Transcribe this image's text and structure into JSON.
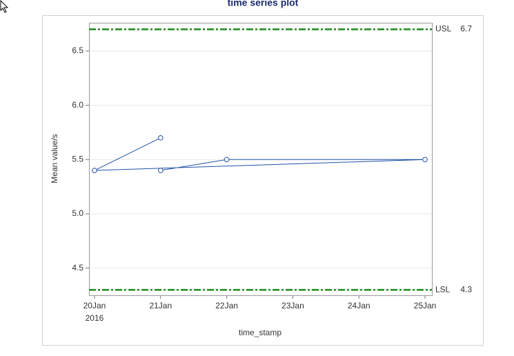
{
  "chart_data": {
    "type": "line",
    "title": "time series plot",
    "x_label": "time_stamp",
    "y_label": "Mean value/s",
    "x": [
      "2016-01-21",
      "2016-01-20",
      "2016-01-25",
      "2016-01-22",
      "2016-01-21"
    ],
    "series": [
      {
        "name": "Mean value/s",
        "color": "#2050a8",
        "values": [
          5.7,
          5.4,
          5.5,
          5.5,
          5.4
        ]
      }
    ],
    "xlim": [
      "2016-01-19T22:00Z",
      "2016-01-25T02:30Z"
    ],
    "xticks": [
      {
        "value": "2016-01-20",
        "label": "20Jan"
      },
      {
        "value": "2016-01-21",
        "label": "21Jan"
      },
      {
        "value": "2016-01-22",
        "label": "22Jan"
      },
      {
        "value": "2016-01-23",
        "label": "23Jan"
      },
      {
        "value": "2016-01-24",
        "label": "24Jan"
      },
      {
        "value": "2016-01-25",
        "label": "25Jan"
      }
    ],
    "xtick_year": "2016",
    "ylim": [
      4.25,
      6.76
    ],
    "yticks": [
      4.5,
      {
        "value": 5,
        "label": "5.0"
      },
      5.5,
      {
        "value": 6,
        "label": "6.0"
      },
      6.5
    ],
    "grid": true,
    "reference_lines": [
      {
        "label": "USL",
        "value": 6.7,
        "color": "#1a8a1a"
      },
      {
        "label": "LSL",
        "value": 4.3,
        "color": "#1a8a1a"
      }
    ]
  }
}
